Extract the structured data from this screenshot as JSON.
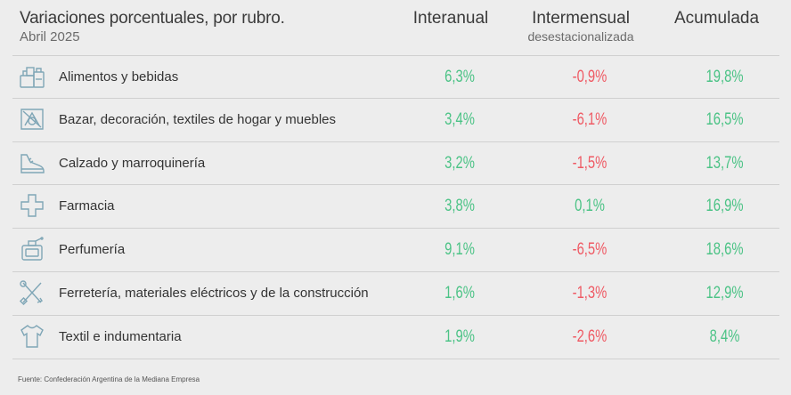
{
  "chart_data": {
    "type": "table",
    "title": "Variaciones porcentuales, por rubro.",
    "subtitle": "Abril 2025",
    "columns": [
      {
        "label": "Interanual",
        "sublabel": ""
      },
      {
        "label": "Intermensual",
        "sublabel": "desestacionalizada"
      },
      {
        "label": "Acumulada",
        "sublabel": ""
      }
    ],
    "rows": [
      {
        "label": "Alimentos y bebidas",
        "icon": "shopping-basket-icon",
        "values": [
          "6,3%",
          "-0,9%",
          "19,8%"
        ]
      },
      {
        "label": "Bazar, decoración, textiles de hogar y muebles",
        "icon": "home-decor-icon",
        "values": [
          "3,4%",
          "-6,1%",
          "16,5%"
        ]
      },
      {
        "label": "Calzado y marroquinería",
        "icon": "shoe-icon",
        "values": [
          "3,2%",
          "-1,5%",
          "13,7%"
        ]
      },
      {
        "label": "Farmacia",
        "icon": "medical-cross-icon",
        "values": [
          "3,8%",
          "0,1%",
          "16,9%"
        ]
      },
      {
        "label": "Perfumería",
        "icon": "perfume-icon",
        "values": [
          "9,1%",
          "-6,5%",
          "18,6%"
        ]
      },
      {
        "label": "Ferretería, materiales eléctricos y de la construcción",
        "icon": "tools-icon",
        "values": [
          "1,6%",
          "-1,3%",
          "12,9%"
        ]
      },
      {
        "label": "Textil e indumentaria",
        "icon": "tshirt-icon",
        "values": [
          "1,9%",
          "-2,6%",
          "8,4%"
        ]
      }
    ],
    "colors": {
      "positive": "#4cc386",
      "negative": "#ef5a64",
      "icon": "#7fa6b6"
    }
  },
  "source": "Fuente: Confederación Argentina de la Mediana Empresa"
}
